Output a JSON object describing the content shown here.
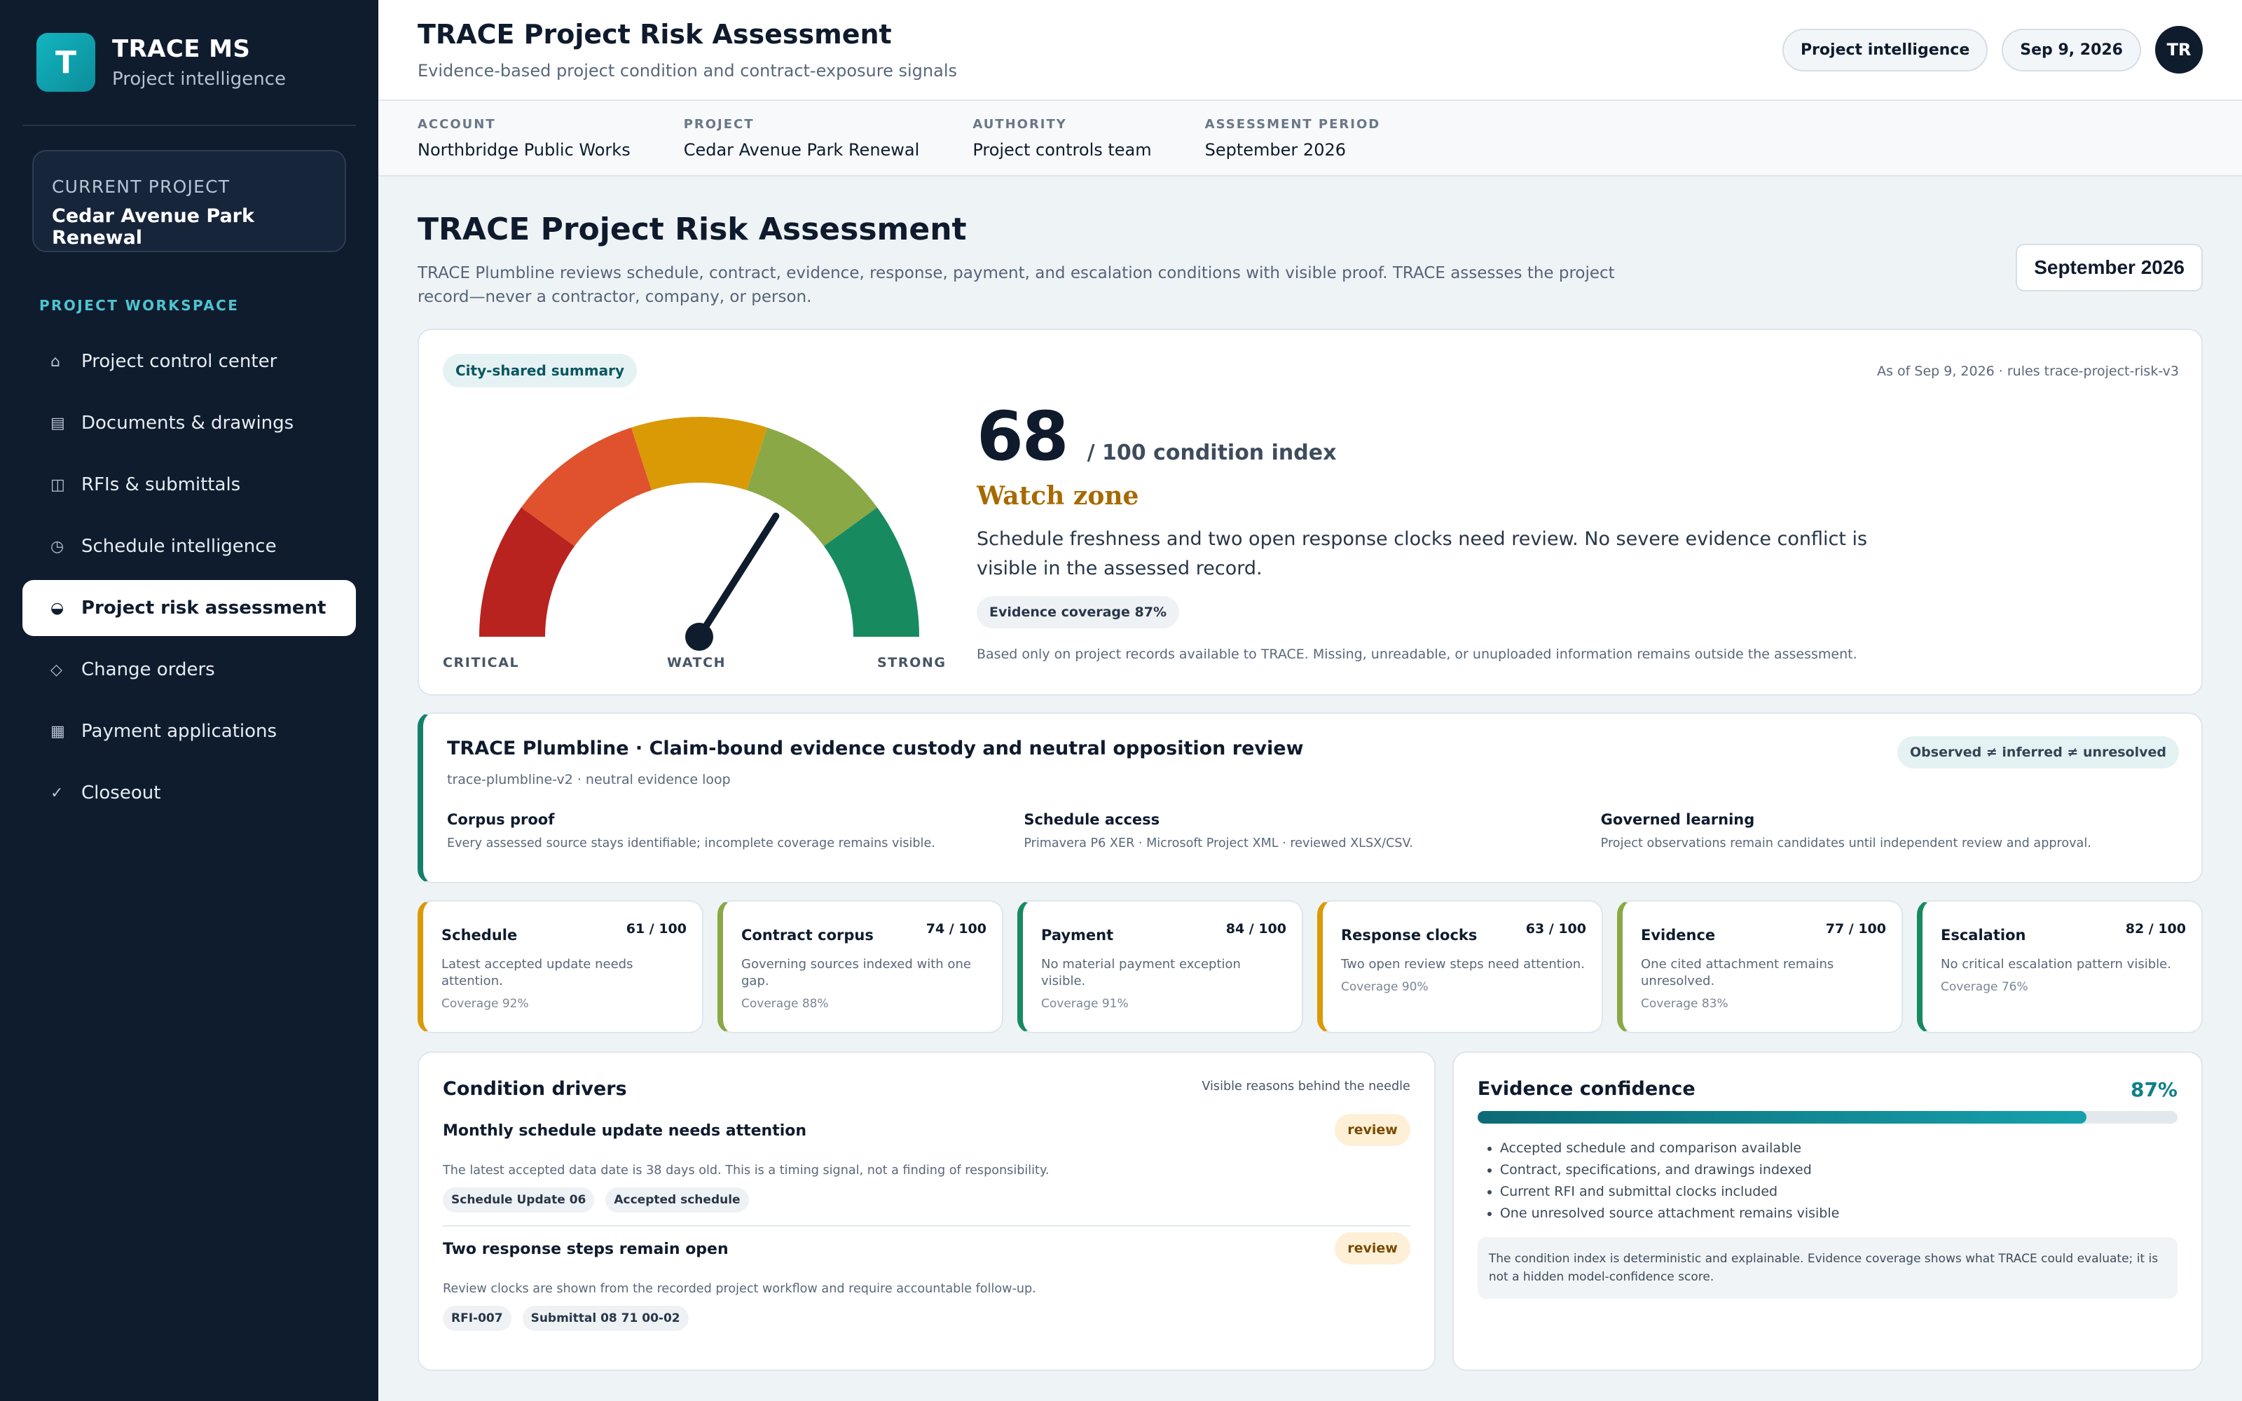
{
  "sidebar": {
    "brand_letter": "T",
    "brand_name": "TRACE MS",
    "brand_sub": "Project intelligence",
    "current_project_label": "CURRENT PROJECT",
    "current_project_name": "Cedar Avenue Park Renewal",
    "workspace_label": "PROJECT WORKSPACE",
    "items": [
      {
        "icon": "⌂",
        "icon_name": "home-icon",
        "label": "Project control center"
      },
      {
        "icon": "▤",
        "icon_name": "documents-icon",
        "label": "Documents & drawings"
      },
      {
        "icon": "◫",
        "icon_name": "rfi-icon",
        "label": "RFIs & submittals"
      },
      {
        "icon": "◷",
        "icon_name": "clock-icon",
        "label": "Schedule intelligence"
      },
      {
        "icon": "◒",
        "icon_name": "gauge-icon",
        "label": "Project risk assessment"
      },
      {
        "icon": "◇",
        "icon_name": "diamond-icon",
        "label": "Change orders"
      },
      {
        "icon": "▦",
        "icon_name": "grid-icon",
        "label": "Payment applications"
      },
      {
        "icon": "✓",
        "icon_name": "check-icon",
        "label": "Closeout"
      }
    ]
  },
  "topbar": {
    "title": "TRACE Project Risk Assessment",
    "subtitle": "Evidence-based project condition and contract-exposure signals",
    "pill_intel": "Project intelligence",
    "pill_date": "Sep 9, 2026",
    "avatar": "TR"
  },
  "meta": {
    "account_label": "ACCOUNT",
    "account": "Northbridge Public Works",
    "project_label": "PROJECT",
    "project": "Cedar Avenue Park Renewal",
    "authority_label": "AUTHORITY",
    "authority": "Project controls team",
    "period_label": "ASSESSMENT PERIOD",
    "period": "September 2026"
  },
  "page": {
    "title": "TRACE Project Risk Assessment",
    "description": "TRACE Plumbline reviews schedule, contract, evidence, response, payment, and escalation conditions with visible proof. TRACE assesses the project record—never a contractor, company, or person.",
    "period_box": "September 2026"
  },
  "hero": {
    "tag": "City-shared summary",
    "as_of": "As of Sep 9, 2026 · rules trace-project-risk-v3",
    "score": "68",
    "score_value": 68,
    "score_suffix": "/ 100 condition index",
    "zone": "Watch zone",
    "zone_desc": "Schedule freshness and two open response clocks need review. No severe evidence conflict is visible in the assessed record.",
    "coverage_tag": "Evidence coverage 87%",
    "note": "Based only on project records available to TRACE. Missing, unreadable, or unuploaded information remains outside the assessment.",
    "gauge_labels": {
      "left": "CRITICAL",
      "mid": "WATCH",
      "right": "STRONG"
    },
    "gauge_colors": [
      "#b8231f",
      "#e0522d",
      "#d99a06",
      "#8aa846",
      "#178a5f"
    ]
  },
  "plumbline": {
    "title": "TRACE Plumbline · Claim-bound evidence custody and neutral opposition review",
    "subtitle": "trace-plumbline-v2 · neutral evidence loop",
    "badge": "Observed ≠ inferred ≠ unresolved",
    "columns": [
      {
        "heading": "Corpus proof",
        "text": "Every assessed source stays identifiable; incomplete coverage remains visible."
      },
      {
        "heading": "Schedule access",
        "text": "Primavera P6 XER · Microsoft Project XML · reviewed XLSX/CSV."
      },
      {
        "heading": "Governed learning",
        "text": "Project observations remain candidates until independent review and approval."
      }
    ]
  },
  "metrics": [
    {
      "name": "Schedule",
      "score": "61 / 100",
      "desc": "Latest accepted update needs attention.",
      "coverage": "Coverage 92%",
      "color": "#d99a06"
    },
    {
      "name": "Contract corpus",
      "score": "74 / 100",
      "desc": "Governing sources indexed with one gap.",
      "coverage": "Coverage 88%",
      "color": "#8aa846"
    },
    {
      "name": "Payment",
      "score": "84 / 100",
      "desc": "No material payment exception visible.",
      "coverage": "Coverage 91%",
      "color": "#178a5f"
    },
    {
      "name": "Response clocks",
      "score": "63 / 100",
      "desc": "Two open review steps need attention.",
      "coverage": "Coverage 90%",
      "color": "#d99a06"
    },
    {
      "name": "Evidence",
      "score": "77 / 100",
      "desc": "One cited attachment remains unresolved.",
      "coverage": "Coverage 83%",
      "color": "#8aa846"
    },
    {
      "name": "Escalation",
      "score": "82 / 100",
      "desc": "No critical escalation pattern visible.",
      "coverage": "Coverage 76%",
      "color": "#178a5f"
    }
  ],
  "drivers": {
    "title": "Condition drivers",
    "note": "Visible reasons behind the needle",
    "items": [
      {
        "title": "Monthly schedule update needs attention",
        "badge": "review",
        "desc": "The latest accepted data date is 38 days old. This is a timing signal, not a finding of responsibility.",
        "chips": [
          "Schedule Update 06",
          "Accepted schedule"
        ]
      },
      {
        "title": "Two response steps remain open",
        "badge": "review",
        "desc": "Review clocks are shown from the recorded project workflow and require accountable follow-up.",
        "chips": [
          "RFI-007",
          "Submittal 08 71 00-02"
        ]
      }
    ]
  },
  "confidence": {
    "title": "Evidence confidence",
    "pct": "87%",
    "value": 0.87,
    "items": [
      "Accepted schedule and comparison available",
      "Contract, specifications, and drawings indexed",
      "Current RFI and submittal clocks included",
      "One unresolved source attachment remains visible"
    ],
    "note": "The condition index is deterministic and explainable. Evidence coverage shows what TRACE could evaluate; it is not a hidden model-confidence score."
  }
}
